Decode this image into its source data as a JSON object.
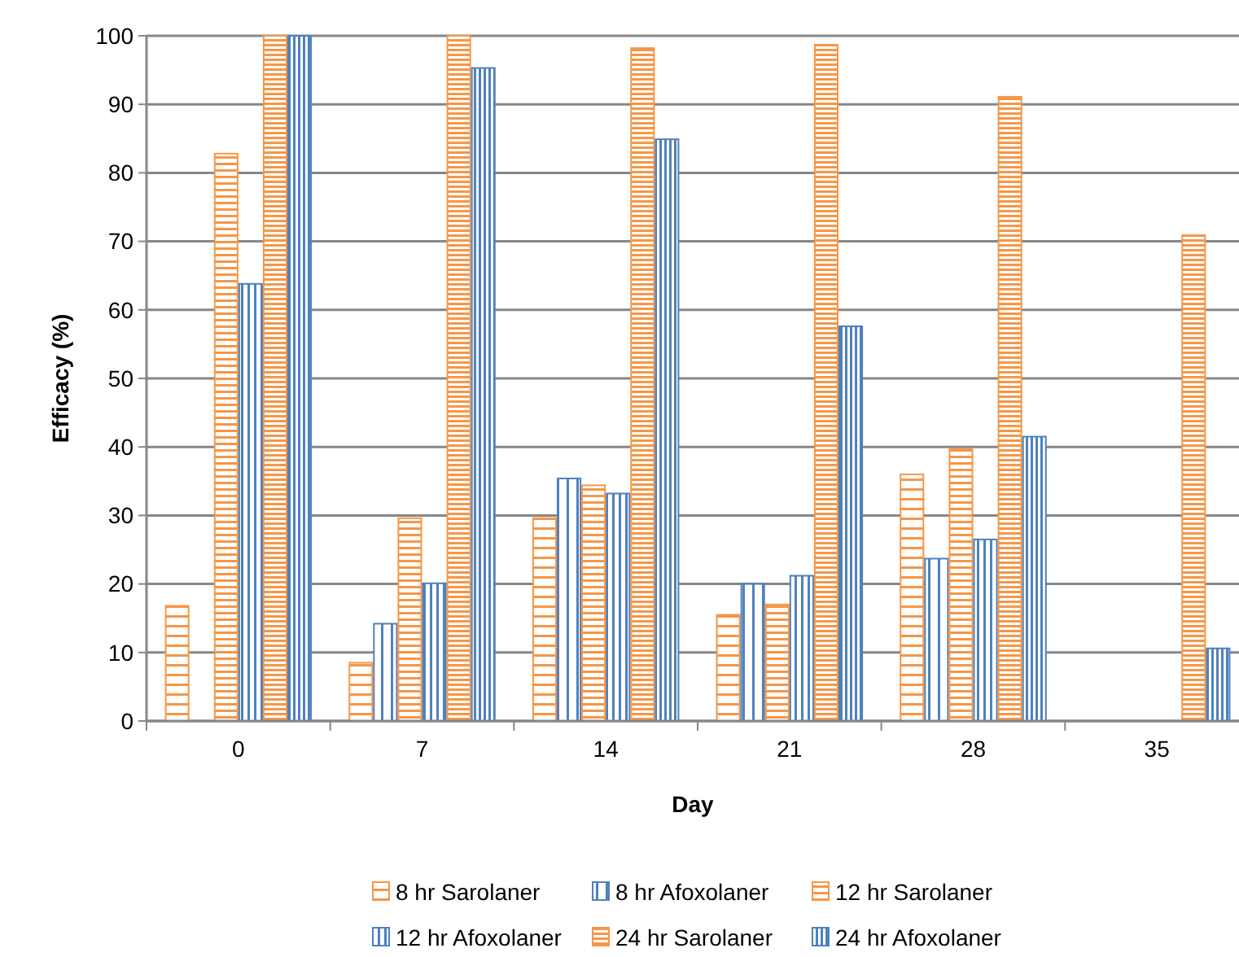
{
  "chart_data": {
    "type": "bar",
    "xlabel": "Day",
    "ylabel": "Efficacy (%)",
    "categories": [
      "0",
      "7",
      "14",
      "21",
      "28",
      "35"
    ],
    "series": [
      {
        "name": "8 hr Sarolaner",
        "color": "#f79646",
        "values": [
          16.8,
          8.5,
          29.6,
          15.5,
          36.0,
          0
        ]
      },
      {
        "name": "8 hr Afoxolaner",
        "color": "#4f81bd",
        "values": [
          0,
          14.2,
          35.4,
          20.0,
          23.7,
          0
        ]
      },
      {
        "name": "12 hr Sarolaner",
        "color": "#f79646",
        "values": [
          82.8,
          29.6,
          34.4,
          17.0,
          39.7,
          0
        ]
      },
      {
        "name": "12 hr Afoxolaner",
        "color": "#4f81bd",
        "values": [
          63.8,
          20.1,
          33.2,
          21.2,
          26.5,
          0
        ]
      },
      {
        "name": "24 hr Sarolaner",
        "color": "#f79646",
        "values": [
          100,
          100,
          98.2,
          98.7,
          91.1,
          70.9
        ]
      },
      {
        "name": "24 hr Afoxolaner",
        "color": "#4f81bd",
        "values": [
          100,
          95.3,
          84.9,
          57.6,
          41.5,
          10.6
        ]
      }
    ],
    "ylim": [
      0,
      100
    ],
    "yticks": [
      0,
      10,
      20,
      30,
      40,
      50,
      60,
      70,
      80,
      90,
      100
    ],
    "grid": "y",
    "legend": "bottom"
  }
}
